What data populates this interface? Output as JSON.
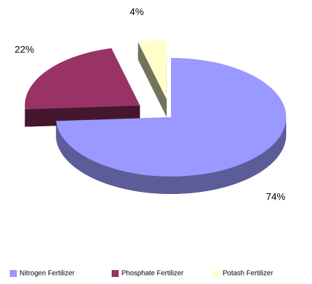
{
  "chart_data": {
    "type": "pie3d",
    "categories": [
      "Nitrogen Fertilizer",
      "Phosphate Fertilizer",
      "Potash Fertilizer"
    ],
    "values": [
      74,
      22,
      4
    ],
    "value_labels": [
      "74%",
      "22%",
      "4%"
    ],
    "colors": [
      "#9999ff",
      "#993366",
      "#ffffcc"
    ],
    "legend": "bottom"
  }
}
